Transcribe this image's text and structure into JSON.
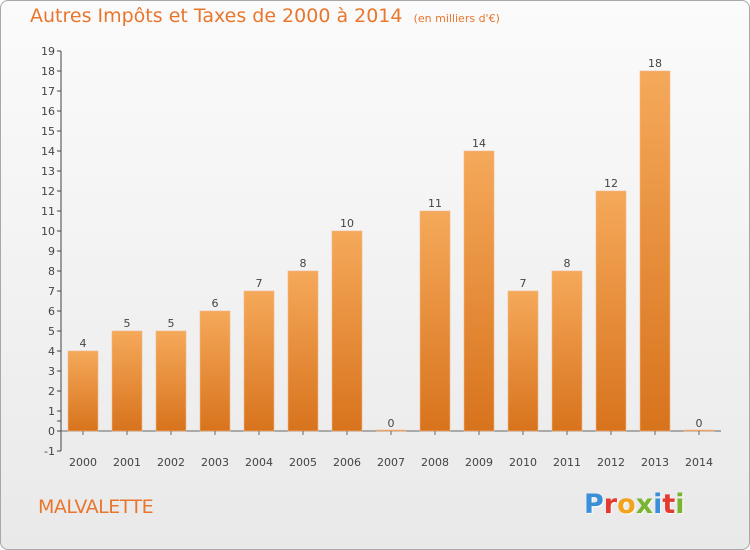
{
  "title": "Autres Impôts et Taxes de 2000 à 2014",
  "subtitle": "(en milliers d'€)",
  "town": "MALVALETTE",
  "logo": {
    "letters": [
      "P",
      "r",
      "o",
      "x",
      "i",
      "t",
      "i"
    ],
    "colors": [
      "#3a8fd8",
      "#e33b30",
      "#f2a21b",
      "#7ab532",
      "#3a8fd8",
      "#e33b30",
      "#7ab532"
    ]
  },
  "colors": {
    "accent": "#e8762d",
    "bar_top": "#f5a95a",
    "bar_bottom": "#d8731d"
  },
  "chart_data": {
    "type": "bar",
    "categories": [
      "2000",
      "2001",
      "2002",
      "2003",
      "2004",
      "2005",
      "2006",
      "2007",
      "2008",
      "2009",
      "2010",
      "2011",
      "2012",
      "2013",
      "2014"
    ],
    "values": [
      4,
      5,
      5,
      6,
      7,
      8,
      10,
      0,
      11,
      14,
      7,
      8,
      12,
      18,
      0
    ],
    "ylim": [
      -1,
      19
    ],
    "yticks": [
      "-1",
      "0",
      "",
      "1",
      "2",
      "3",
      "4",
      "5",
      "6",
      "7",
      "8",
      "9",
      "10",
      "11",
      "12",
      "13",
      "14",
      "15",
      "16",
      "17",
      "18",
      "19"
    ],
    "grid": false
  }
}
